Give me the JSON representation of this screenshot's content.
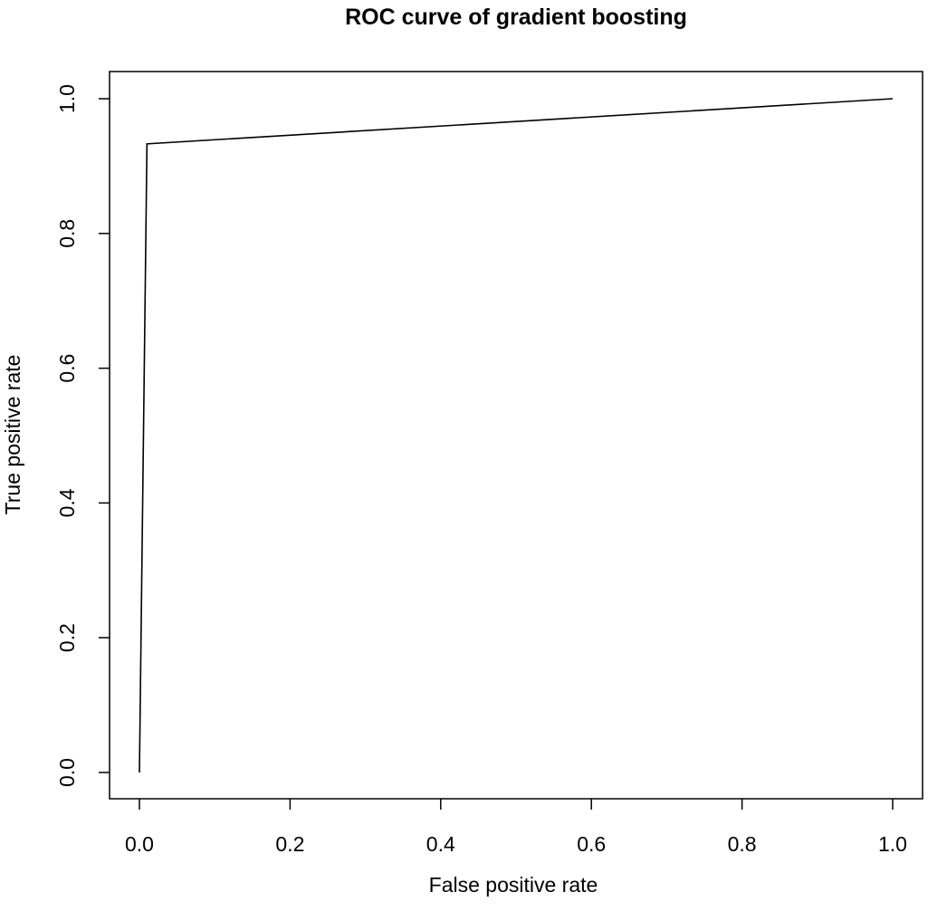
{
  "chart_data": {
    "type": "line",
    "title": "ROC curve of gradient boosting",
    "xlabel": "False positive rate",
    "ylabel": "True positive rate",
    "xlim": [
      0,
      1
    ],
    "ylim": [
      0,
      1
    ],
    "x_ticks": [
      "0.0",
      "0.2",
      "0.4",
      "0.6",
      "0.8",
      "1.0"
    ],
    "y_ticks": [
      "0.0",
      "0.2",
      "0.4",
      "0.6",
      "0.8",
      "1.0"
    ],
    "grid": false,
    "line_color": "#000000",
    "series": [
      {
        "x": [
          0.0,
          0.01,
          1.0
        ],
        "y": [
          0.0,
          0.933,
          1.0
        ]
      }
    ]
  }
}
